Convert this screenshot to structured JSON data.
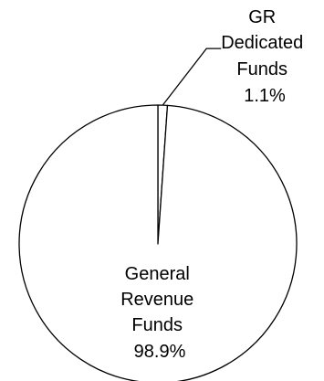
{
  "chart_data": {
    "type": "pie",
    "title": "",
    "slices": [
      {
        "label_lines": [
          "General",
          "Revenue",
          "Funds"
        ],
        "value": 98.9,
        "value_label": "98.9%",
        "color": "#ffffff"
      },
      {
        "label_lines": [
          "GR",
          "Dedicated",
          "Funds"
        ],
        "value": 1.1,
        "value_label": "1.1%",
        "color": "#ffffff"
      }
    ],
    "stroke_color": "#000000",
    "start_angle": "top, clockwise",
    "legend": "none"
  }
}
